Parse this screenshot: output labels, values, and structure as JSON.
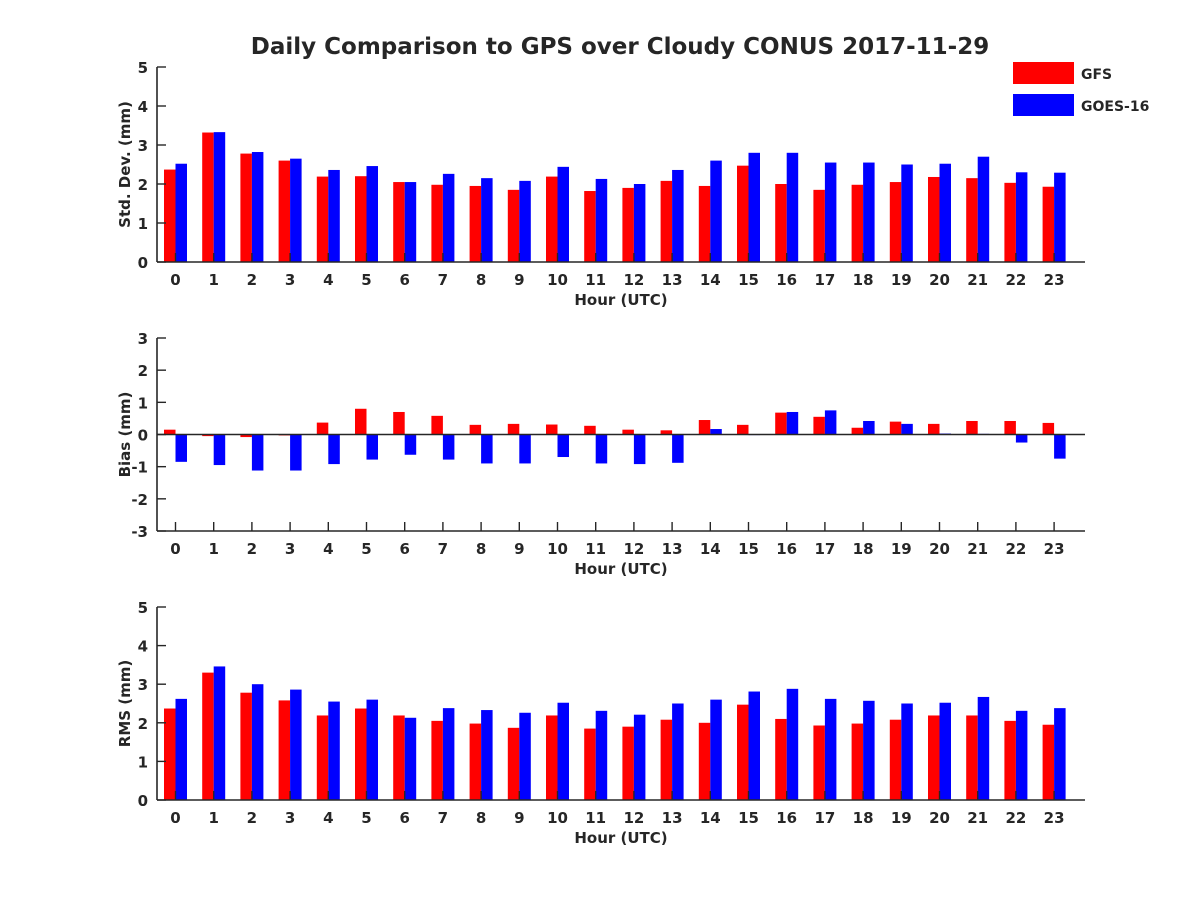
{
  "title": "Daily Comparison to GPS over Cloudy CONUS 2017-11-29",
  "legend": {
    "placement": "top-right",
    "items": [
      {
        "label": "GFS",
        "color": "#ff0000"
      },
      {
        "label": "GOES-16",
        "color": "#0000ff"
      }
    ]
  },
  "chart_data": [
    {
      "type": "bar",
      "title": "",
      "xlabel": "Hour (UTC)",
      "ylabel": "Std. Dev. (mm)",
      "ylim": [
        0,
        5
      ],
      "yticks": [
        0,
        1,
        2,
        3,
        4,
        5
      ],
      "categories": [
        "0",
        "1",
        "2",
        "3",
        "4",
        "5",
        "6",
        "7",
        "8",
        "9",
        "10",
        "11",
        "12",
        "13",
        "14",
        "15",
        "16",
        "17",
        "18",
        "19",
        "20",
        "21",
        "22",
        "23"
      ],
      "series": [
        {
          "name": "GFS",
          "color": "#ff0000",
          "values": [
            2.37,
            3.32,
            2.78,
            2.6,
            2.19,
            2.2,
            2.05,
            1.98,
            1.95,
            1.85,
            2.19,
            1.82,
            1.9,
            2.08,
            1.95,
            2.47,
            2.0,
            1.85,
            1.98,
            2.05,
            2.18,
            2.15,
            2.03,
            1.93
          ]
        },
        {
          "name": "GOES-16",
          "color": "#0000ff",
          "values": [
            2.52,
            3.33,
            2.82,
            2.65,
            2.36,
            2.46,
            2.05,
            2.26,
            2.15,
            2.08,
            2.44,
            2.13,
            2.0,
            2.36,
            2.6,
            2.8,
            2.8,
            2.55,
            2.55,
            2.5,
            2.52,
            2.7,
            2.3,
            2.29
          ]
        }
      ]
    },
    {
      "type": "bar",
      "title": "",
      "xlabel": "Hour (UTC)",
      "ylabel": "Bias (mm)",
      "ylim": [
        -3,
        3
      ],
      "yticks": [
        -3,
        -2,
        -1,
        0,
        1,
        2,
        3
      ],
      "categories": [
        "0",
        "1",
        "2",
        "3",
        "4",
        "5",
        "6",
        "7",
        "8",
        "9",
        "10",
        "11",
        "12",
        "13",
        "14",
        "15",
        "16",
        "17",
        "18",
        "19",
        "20",
        "21",
        "22",
        "23"
      ],
      "series": [
        {
          "name": "GFS",
          "color": "#ff0000",
          "values": [
            0.15,
            -0.05,
            -0.08,
            -0.03,
            0.37,
            0.8,
            0.7,
            0.58,
            0.3,
            0.33,
            0.31,
            0.27,
            0.15,
            0.13,
            0.45,
            0.3,
            0.68,
            0.55,
            0.21,
            0.4,
            0.33,
            0.42,
            0.42,
            0.36
          ]
        },
        {
          "name": "GOES-16",
          "color": "#0000ff",
          "values": [
            -0.85,
            -0.95,
            -1.12,
            -1.12,
            -0.92,
            -0.78,
            -0.63,
            -0.78,
            -0.9,
            -0.9,
            -0.7,
            -0.9,
            -0.92,
            -0.88,
            0.17,
            0.0,
            0.7,
            0.75,
            0.42,
            0.33,
            0.03,
            0.02,
            -0.25,
            -0.75
          ]
        }
      ]
    },
    {
      "type": "bar",
      "title": "",
      "xlabel": "Hour (UTC)",
      "ylabel": "RMS (mm)",
      "ylim": [
        0,
        5
      ],
      "yticks": [
        0,
        1,
        2,
        3,
        4,
        5
      ],
      "categories": [
        "0",
        "1",
        "2",
        "3",
        "4",
        "5",
        "6",
        "7",
        "8",
        "9",
        "10",
        "11",
        "12",
        "13",
        "14",
        "15",
        "16",
        "17",
        "18",
        "19",
        "20",
        "21",
        "22",
        "23"
      ],
      "series": [
        {
          "name": "GFS",
          "color": "#ff0000",
          "values": [
            2.37,
            3.3,
            2.78,
            2.58,
            2.19,
            2.37,
            2.19,
            2.05,
            1.98,
            1.87,
            2.19,
            1.85,
            1.9,
            2.08,
            2.0,
            2.47,
            2.1,
            1.93,
            1.98,
            2.08,
            2.19,
            2.19,
            2.05,
            1.95
          ]
        },
        {
          "name": "GOES-16",
          "color": "#0000ff",
          "values": [
            2.62,
            3.46,
            3.0,
            2.86,
            2.55,
            2.6,
            2.13,
            2.38,
            2.33,
            2.26,
            2.52,
            2.31,
            2.21,
            2.5,
            2.6,
            2.81,
            2.88,
            2.62,
            2.57,
            2.5,
            2.52,
            2.67,
            2.31,
            2.38
          ]
        }
      ]
    }
  ]
}
